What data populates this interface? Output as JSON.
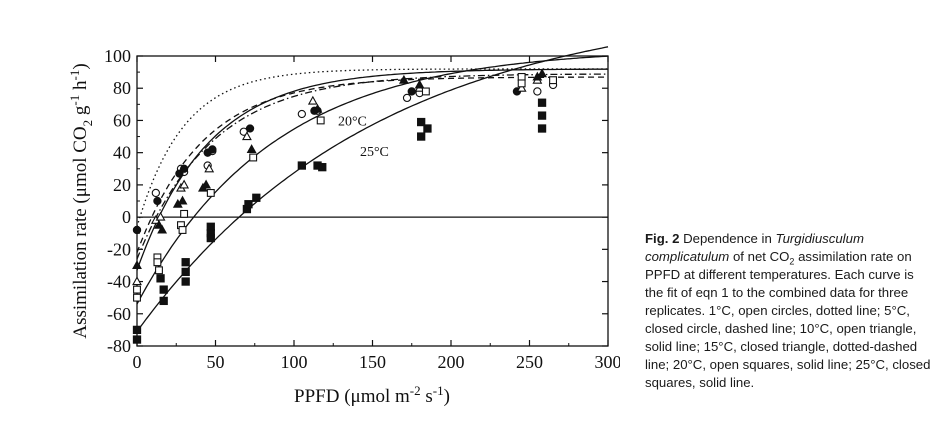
{
  "chart_data": {
    "type": "scatter",
    "xlabel": {
      "main": "PPFD (μmol m",
      "exp1": "-2",
      "mid": " s",
      "exp2": "-1",
      "tail": ")"
    },
    "ylabel": {
      "main": "Assimilation rate (μmol CO",
      "sub": "2",
      "mid": " g",
      "exp1": "-1",
      "mid2": " h",
      "exp2": "-1",
      "tail": ")"
    },
    "xlim": [
      0,
      300
    ],
    "ylim": [
      -80,
      100
    ],
    "x_ticks": [
      0,
      50,
      100,
      150,
      200,
      250,
      300
    ],
    "y_ticks": [
      -80,
      -60,
      -40,
      -20,
      0,
      20,
      40,
      60,
      80,
      100
    ],
    "zero_line": true,
    "annotations": [
      {
        "text": "20°C",
        "x": 128,
        "y": 57
      },
      {
        "text": "25°C",
        "x": 142,
        "y": 38
      }
    ],
    "series": [
      {
        "name": "1°C",
        "marker": "open-circle",
        "line": "dotted",
        "curve": {
          "pmax": 92,
          "rd": -6,
          "k": 0.034
        },
        "points": [
          [
            0,
            -8
          ],
          [
            12,
            15
          ],
          [
            28,
            30
          ],
          [
            30,
            28
          ],
          [
            45,
            32
          ],
          [
            48,
            41
          ],
          [
            68,
            53
          ],
          [
            105,
            64
          ],
          [
            115,
            66
          ],
          [
            172,
            74
          ],
          [
            180,
            77
          ],
          [
            255,
            78
          ],
          [
            265,
            82
          ]
        ]
      },
      {
        "name": "5°C",
        "marker": "closed-circle",
        "line": "dashed",
        "curve": {
          "pmax": 87,
          "rd": -22,
          "k": 0.024
        },
        "points": [
          [
            0,
            -8
          ],
          [
            13,
            10
          ],
          [
            27,
            27
          ],
          [
            30,
            30
          ],
          [
            45,
            40
          ],
          [
            48,
            42
          ],
          [
            72,
            55
          ],
          [
            113,
            66
          ],
          [
            175,
            78
          ],
          [
            242,
            78
          ]
        ]
      },
      {
        "name": "10°C",
        "marker": "open-triangle",
        "line": "solid",
        "curve": {
          "pmax": 92,
          "rd": -33,
          "k": 0.022
        },
        "points": [
          [
            0,
            -40
          ],
          [
            12,
            -2
          ],
          [
            15,
            0
          ],
          [
            28,
            18
          ],
          [
            30,
            20
          ],
          [
            46,
            30
          ],
          [
            70,
            50
          ],
          [
            112,
            72
          ],
          [
            180,
            80
          ],
          [
            245,
            80
          ],
          [
            255,
            85
          ]
        ]
      },
      {
        "name": "15°C",
        "marker": "closed-triangle",
        "line": "dotted-dashed",
        "curve": {
          "pmax": 89,
          "rd": -26,
          "k": 0.021
        },
        "points": [
          [
            0,
            -30
          ],
          [
            14,
            -5
          ],
          [
            16,
            -8
          ],
          [
            26,
            8
          ],
          [
            29,
            10
          ],
          [
            42,
            18
          ],
          [
            44,
            20
          ],
          [
            73,
            42
          ],
          [
            115,
            67
          ],
          [
            170,
            85
          ],
          [
            180,
            82
          ],
          [
            255,
            87
          ],
          [
            258,
            89
          ]
        ]
      },
      {
        "name": "20°C",
        "marker": "open-square",
        "line": "solid",
        "curve": {
          "pmax": 105,
          "rd": -54,
          "k": 0.0115
        },
        "points": [
          [
            0,
            -45
          ],
          [
            0,
            -50
          ],
          [
            13,
            -25
          ],
          [
            13,
            -28
          ],
          [
            14,
            -33
          ],
          [
            28,
            -5
          ],
          [
            29,
            -8
          ],
          [
            30,
            2
          ],
          [
            47,
            15
          ],
          [
            74,
            37
          ],
          [
            117,
            60
          ],
          [
            184,
            78
          ],
          [
            245,
            87
          ],
          [
            245,
            83
          ],
          [
            265,
            85
          ]
        ]
      },
      {
        "name": "25°C",
        "marker": "closed-square",
        "line": "solid",
        "curve": {
          "pmax": 135,
          "rd": -71,
          "k": 0.0065
        },
        "points": [
          [
            0,
            -70
          ],
          [
            0,
            -76
          ],
          [
            15,
            -38
          ],
          [
            17,
            -45
          ],
          [
            17,
            -52
          ],
          [
            31,
            -28
          ],
          [
            31,
            -34
          ],
          [
            31,
            -40
          ],
          [
            47,
            -6
          ],
          [
            47,
            -10
          ],
          [
            47,
            -13
          ],
          [
            70,
            5
          ],
          [
            71,
            8
          ],
          [
            76,
            12
          ],
          [
            105,
            32
          ],
          [
            115,
            32
          ],
          [
            118,
            31
          ],
          [
            181,
            59
          ],
          [
            181,
            50
          ],
          [
            185,
            55
          ],
          [
            258,
            71
          ],
          [
            258,
            63
          ],
          [
            258,
            55
          ]
        ]
      }
    ]
  },
  "caption": {
    "fig_label": "Fig. 2",
    "t1": " Dependence in ",
    "species": "Turgidiusculum complicatulum",
    "t2": " of net CO",
    "co2_sub": "2",
    "t3": " assimilation rate on PPFD at different temperatures. Each curve is the fit of eqn 1 to the combined data for three replicates. 1°C, open circles, dotted line; 5°C, closed circle, dashed line; 10°C, open triangle, solid line; 15°C, closed triangle, dotted-dashed line; 20°C, open squares, solid line; 25°C, closed squares, solid line."
  }
}
